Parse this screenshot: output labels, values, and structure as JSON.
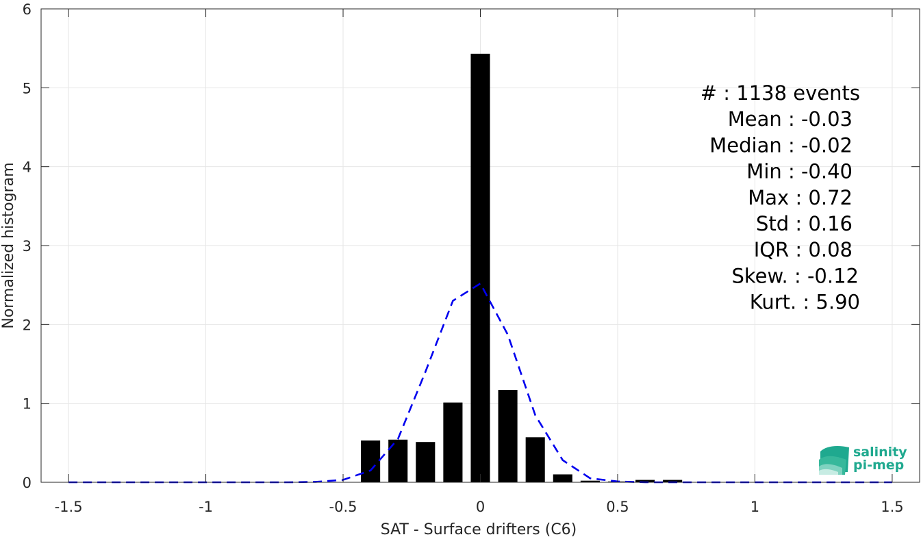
{
  "chart_data": {
    "type": "bar",
    "xlabel": "SAT - Surface drifters (C6)",
    "ylabel": "Normalized histogram",
    "xlim": [
      -1.6,
      1.6
    ],
    "ylim": [
      0,
      6
    ],
    "x_ticks": [
      -1.5,
      -1,
      -0.5,
      0,
      0.5,
      1,
      1.5
    ],
    "x_tick_labels": [
      "-1.5",
      "-1",
      "-0.5",
      "0",
      "0.5",
      "1",
      "1.5"
    ],
    "y_ticks": [
      0,
      1,
      2,
      3,
      4,
      5,
      6
    ],
    "y_tick_labels": [
      "0",
      "1",
      "2",
      "3",
      "4",
      "5",
      "6"
    ],
    "grid": true,
    "bin_width": 0.1,
    "bar_width": 0.07,
    "bar_color": "#000000",
    "bars": [
      {
        "x": -0.4,
        "y": 0.53
      },
      {
        "x": -0.3,
        "y": 0.54
      },
      {
        "x": -0.2,
        "y": 0.51
      },
      {
        "x": -0.1,
        "y": 1.01
      },
      {
        "x": 0.0,
        "y": 5.43
      },
      {
        "x": 0.1,
        "y": 1.17
      },
      {
        "x": 0.2,
        "y": 0.57
      },
      {
        "x": 0.3,
        "y": 0.1
      },
      {
        "x": 0.4,
        "y": 0.02
      },
      {
        "x": 0.5,
        "y": 0.01
      },
      {
        "x": 0.6,
        "y": 0.03
      },
      {
        "x": 0.7,
        "y": 0.03
      }
    ],
    "fit_curve": {
      "style": "dashed",
      "color": "#0000ee",
      "x": [
        -1.5,
        -1.4,
        -1.3,
        -1.2,
        -1.1,
        -1.0,
        -0.9,
        -0.8,
        -0.7,
        -0.6,
        -0.5,
        -0.4,
        -0.3,
        -0.2,
        -0.1,
        0.0,
        0.1,
        0.2,
        0.3,
        0.4,
        0.5,
        0.6,
        0.7,
        0.8,
        0.9,
        1.0,
        1.1,
        1.2,
        1.3,
        1.4,
        1.5
      ],
      "y": [
        0,
        0,
        0,
        0,
        0,
        0,
        0,
        0,
        0,
        0.005,
        0.03,
        0.15,
        0.55,
        1.4,
        2.3,
        2.52,
        1.87,
        0.85,
        0.28,
        0.05,
        0.01,
        0,
        0,
        0,
        0,
        0,
        0,
        0,
        0,
        0,
        0
      ]
    },
    "stats": [
      "#  : 1138 events",
      "Mean : -0.03",
      "Median : -0.02",
      "Min : -0.40",
      "Max : 0.72",
      "Std : 0.16",
      "IQR : 0.08",
      "Skew. : -0.12",
      "Kurt. : 5.90"
    ]
  },
  "logo": {
    "line1": "salinity",
    "line2": "pi-mep",
    "colors": [
      "#1fa98f",
      "#37b89b",
      "#7fd3c0",
      "#c7ece3"
    ]
  }
}
